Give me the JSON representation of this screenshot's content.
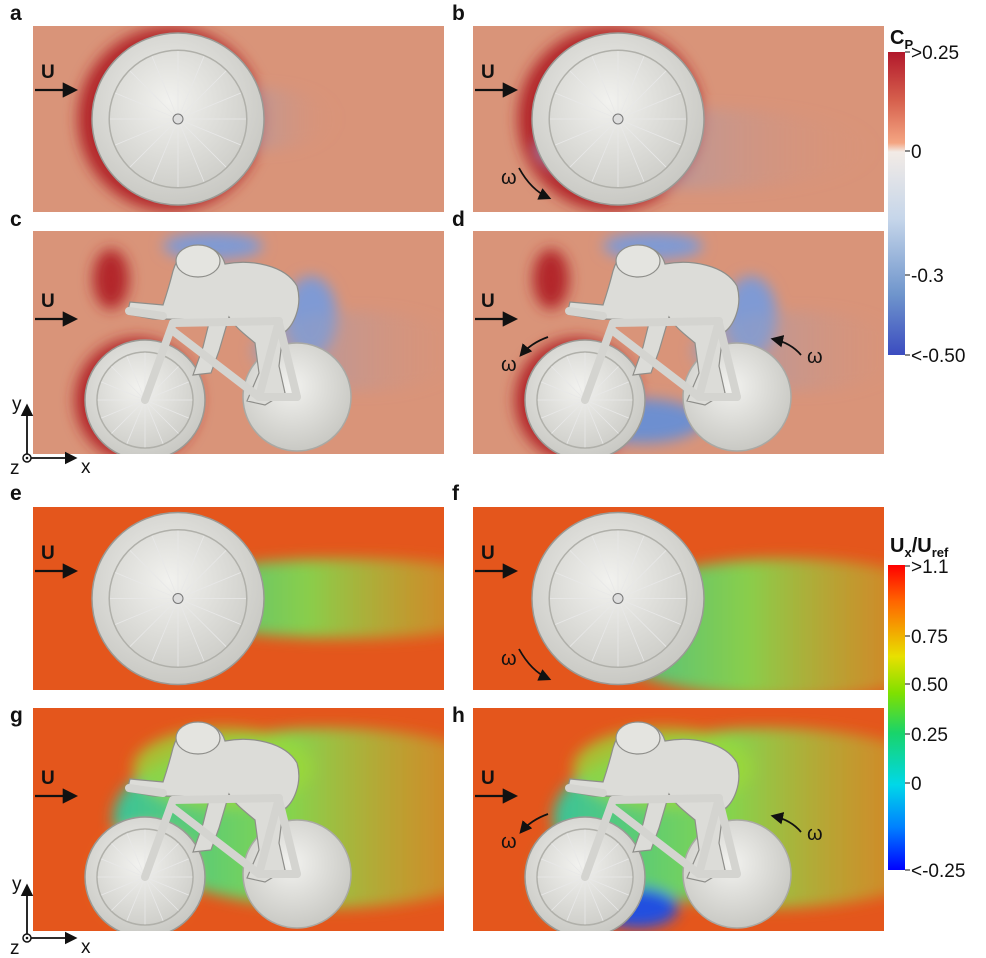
{
  "panels": [
    {
      "label": "a",
      "flow": "U"
    },
    {
      "label": "b",
      "flow": "U",
      "rotation": [
        "ω"
      ]
    },
    {
      "label": "c",
      "flow": "U"
    },
    {
      "label": "d",
      "flow": "U",
      "rotation": [
        "ω",
        "ω"
      ]
    },
    {
      "label": "e",
      "flow": "U"
    },
    {
      "label": "f",
      "flow": "U",
      "rotation": [
        "ω"
      ]
    },
    {
      "label": "g",
      "flow": "U"
    },
    {
      "label": "h",
      "flow": "U",
      "rotation": [
        "ω",
        "ω"
      ]
    }
  ],
  "colorbars": [
    {
      "title": [
        "C",
        "P"
      ],
      "ticks": [
        ">0.25",
        "0",
        "-0.3",
        "<-0.50"
      ]
    },
    {
      "title": [
        "U",
        "x",
        "/U",
        "ref"
      ],
      "ticks": [
        ">1.1",
        "0.75",
        "0.50",
        "0.25",
        "0",
        "<-0.25"
      ]
    }
  ],
  "axes": [
    {
      "y": "y",
      "x": "x",
      "z": "z"
    },
    {
      "y": "y",
      "x": "x",
      "z": "z"
    }
  ]
}
